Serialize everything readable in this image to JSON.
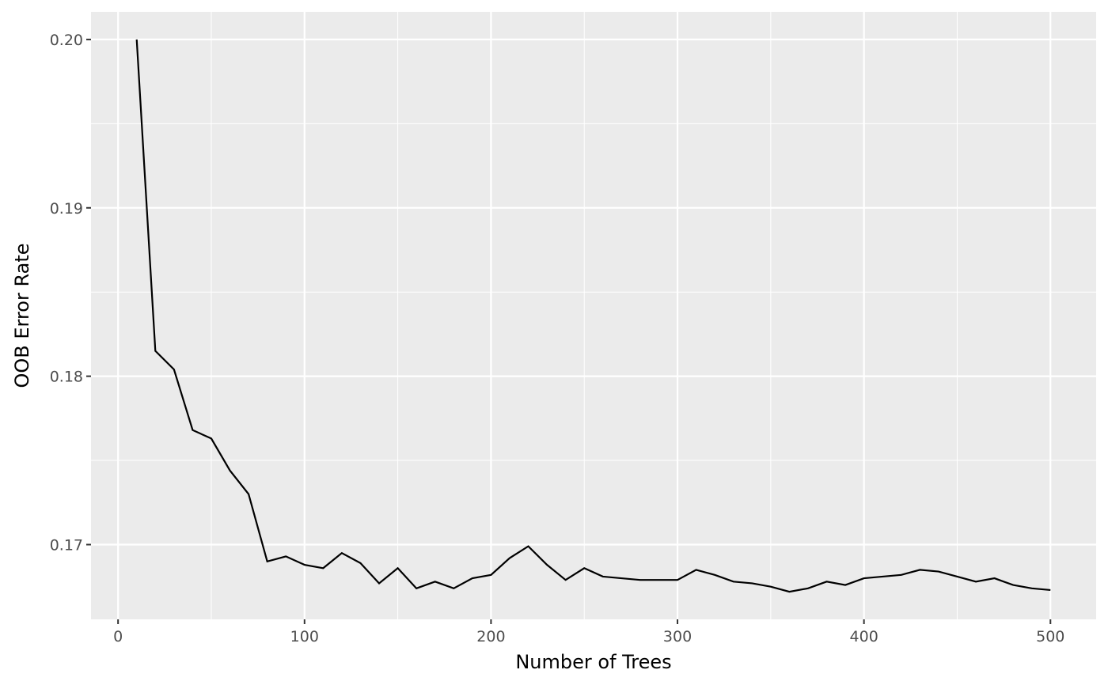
{
  "chart_data": {
    "type": "line",
    "x_label": "Number of Trees",
    "y_label": "OOB Error Rate",
    "x": [
      10,
      20,
      30,
      40,
      50,
      60,
      70,
      80,
      90,
      100,
      110,
      120,
      130,
      140,
      150,
      160,
      170,
      180,
      190,
      200,
      210,
      220,
      230,
      240,
      250,
      260,
      270,
      280,
      290,
      300,
      310,
      320,
      330,
      340,
      350,
      360,
      370,
      380,
      390,
      400,
      410,
      420,
      430,
      440,
      450,
      460,
      470,
      480,
      490,
      500
    ],
    "series": [
      {
        "color": "#000000",
        "values": [
          0.2,
          0.1815,
          0.1804,
          0.1768,
          0.1763,
          0.1744,
          0.173,
          0.169,
          0.1693,
          0.1688,
          0.1686,
          0.1695,
          0.1689,
          0.1677,
          0.1686,
          0.1674,
          0.1678,
          0.1674,
          0.168,
          0.1682,
          0.1692,
          0.1699,
          0.1688,
          0.1679,
          0.1686,
          0.1681,
          0.168,
          0.1679,
          0.1679,
          0.1679,
          0.1685,
          0.1682,
          0.1678,
          0.1677,
          0.1675,
          0.1672,
          0.1674,
          0.1678,
          0.1676,
          0.168,
          0.1681,
          0.1682,
          0.1685,
          0.1684,
          0.1681,
          0.1678,
          0.168,
          0.1676,
          0.1674,
          0.1673
        ]
      }
    ],
    "xlim": [
      -14.5,
      524.5
    ],
    "ylim": [
      0.16556,
      0.20164
    ],
    "xticks": [
      0,
      100,
      200,
      300,
      400,
      500
    ],
    "yticks": [
      0.17,
      0.18,
      0.19,
      {
        "value": 0.2,
        "label": "0.20"
      }
    ],
    "minor_xticks": [
      50,
      150,
      250,
      350,
      450
    ],
    "minor_yticks": [
      0.175,
      0.185,
      0.195
    ],
    "grid": true
  }
}
